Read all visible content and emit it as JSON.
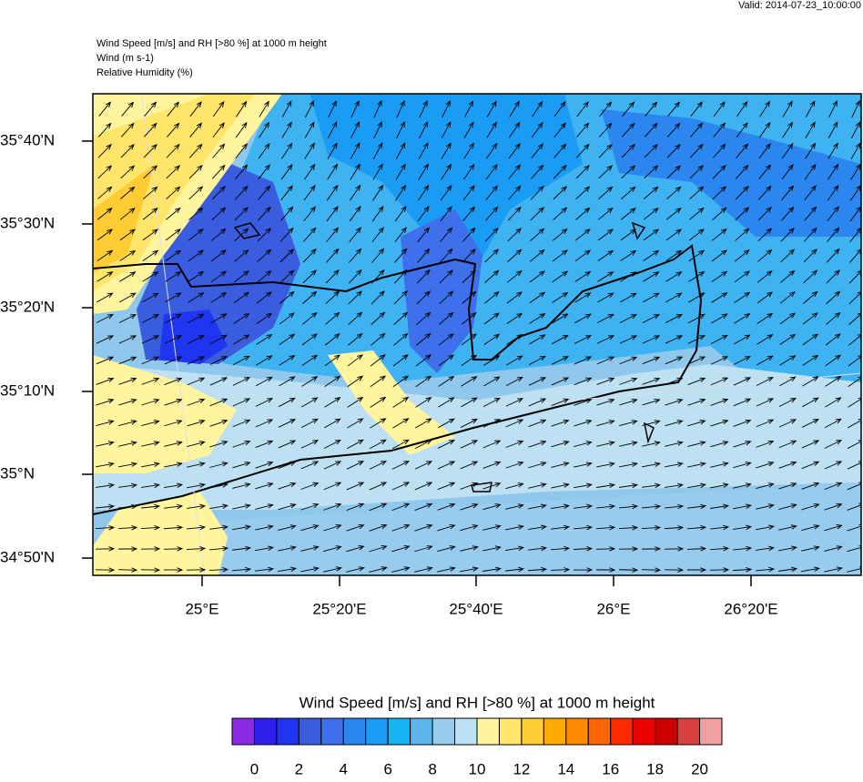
{
  "valid": "Valid: 2014-07-23_10:00:00",
  "header": {
    "lines": [
      "Wind Speed [m/s] and RH [>80 %] at 1000 m height",
      "Wind   (m s-1)",
      "Relative Humidity   (%)"
    ]
  },
  "map": {
    "lat_labels": [
      "35°40'N",
      "35°30'N",
      "35°20'N",
      "35°10'N",
      "35°N",
      "34°50'N"
    ],
    "lon_labels": [
      "25°E",
      "25°20'E",
      "25°40'E",
      "26°E",
      "26°20'E"
    ]
  },
  "colorbar": {
    "title": "Wind Speed [m/s] and RH [>80 %] at 1000 m height",
    "colors": [
      "#8a2be2",
      "#2f1fef",
      "#1f35ef",
      "#3a5de0",
      "#3e70ec",
      "#2b86f0",
      "#1a9cf5",
      "#16b4f2",
      "#5ab6ec",
      "#97ccef",
      "#bde0f2",
      "#fff59e",
      "#ffe66b",
      "#ffcc33",
      "#ffaa00",
      "#ff8800",
      "#ff6600",
      "#ff2a00",
      "#ee0000",
      "#cc0000",
      "#d84040",
      "#f0a0a0"
    ],
    "labels": [
      0,
      2,
      4,
      6,
      8,
      10,
      12,
      14,
      16,
      18,
      20
    ]
  }
}
